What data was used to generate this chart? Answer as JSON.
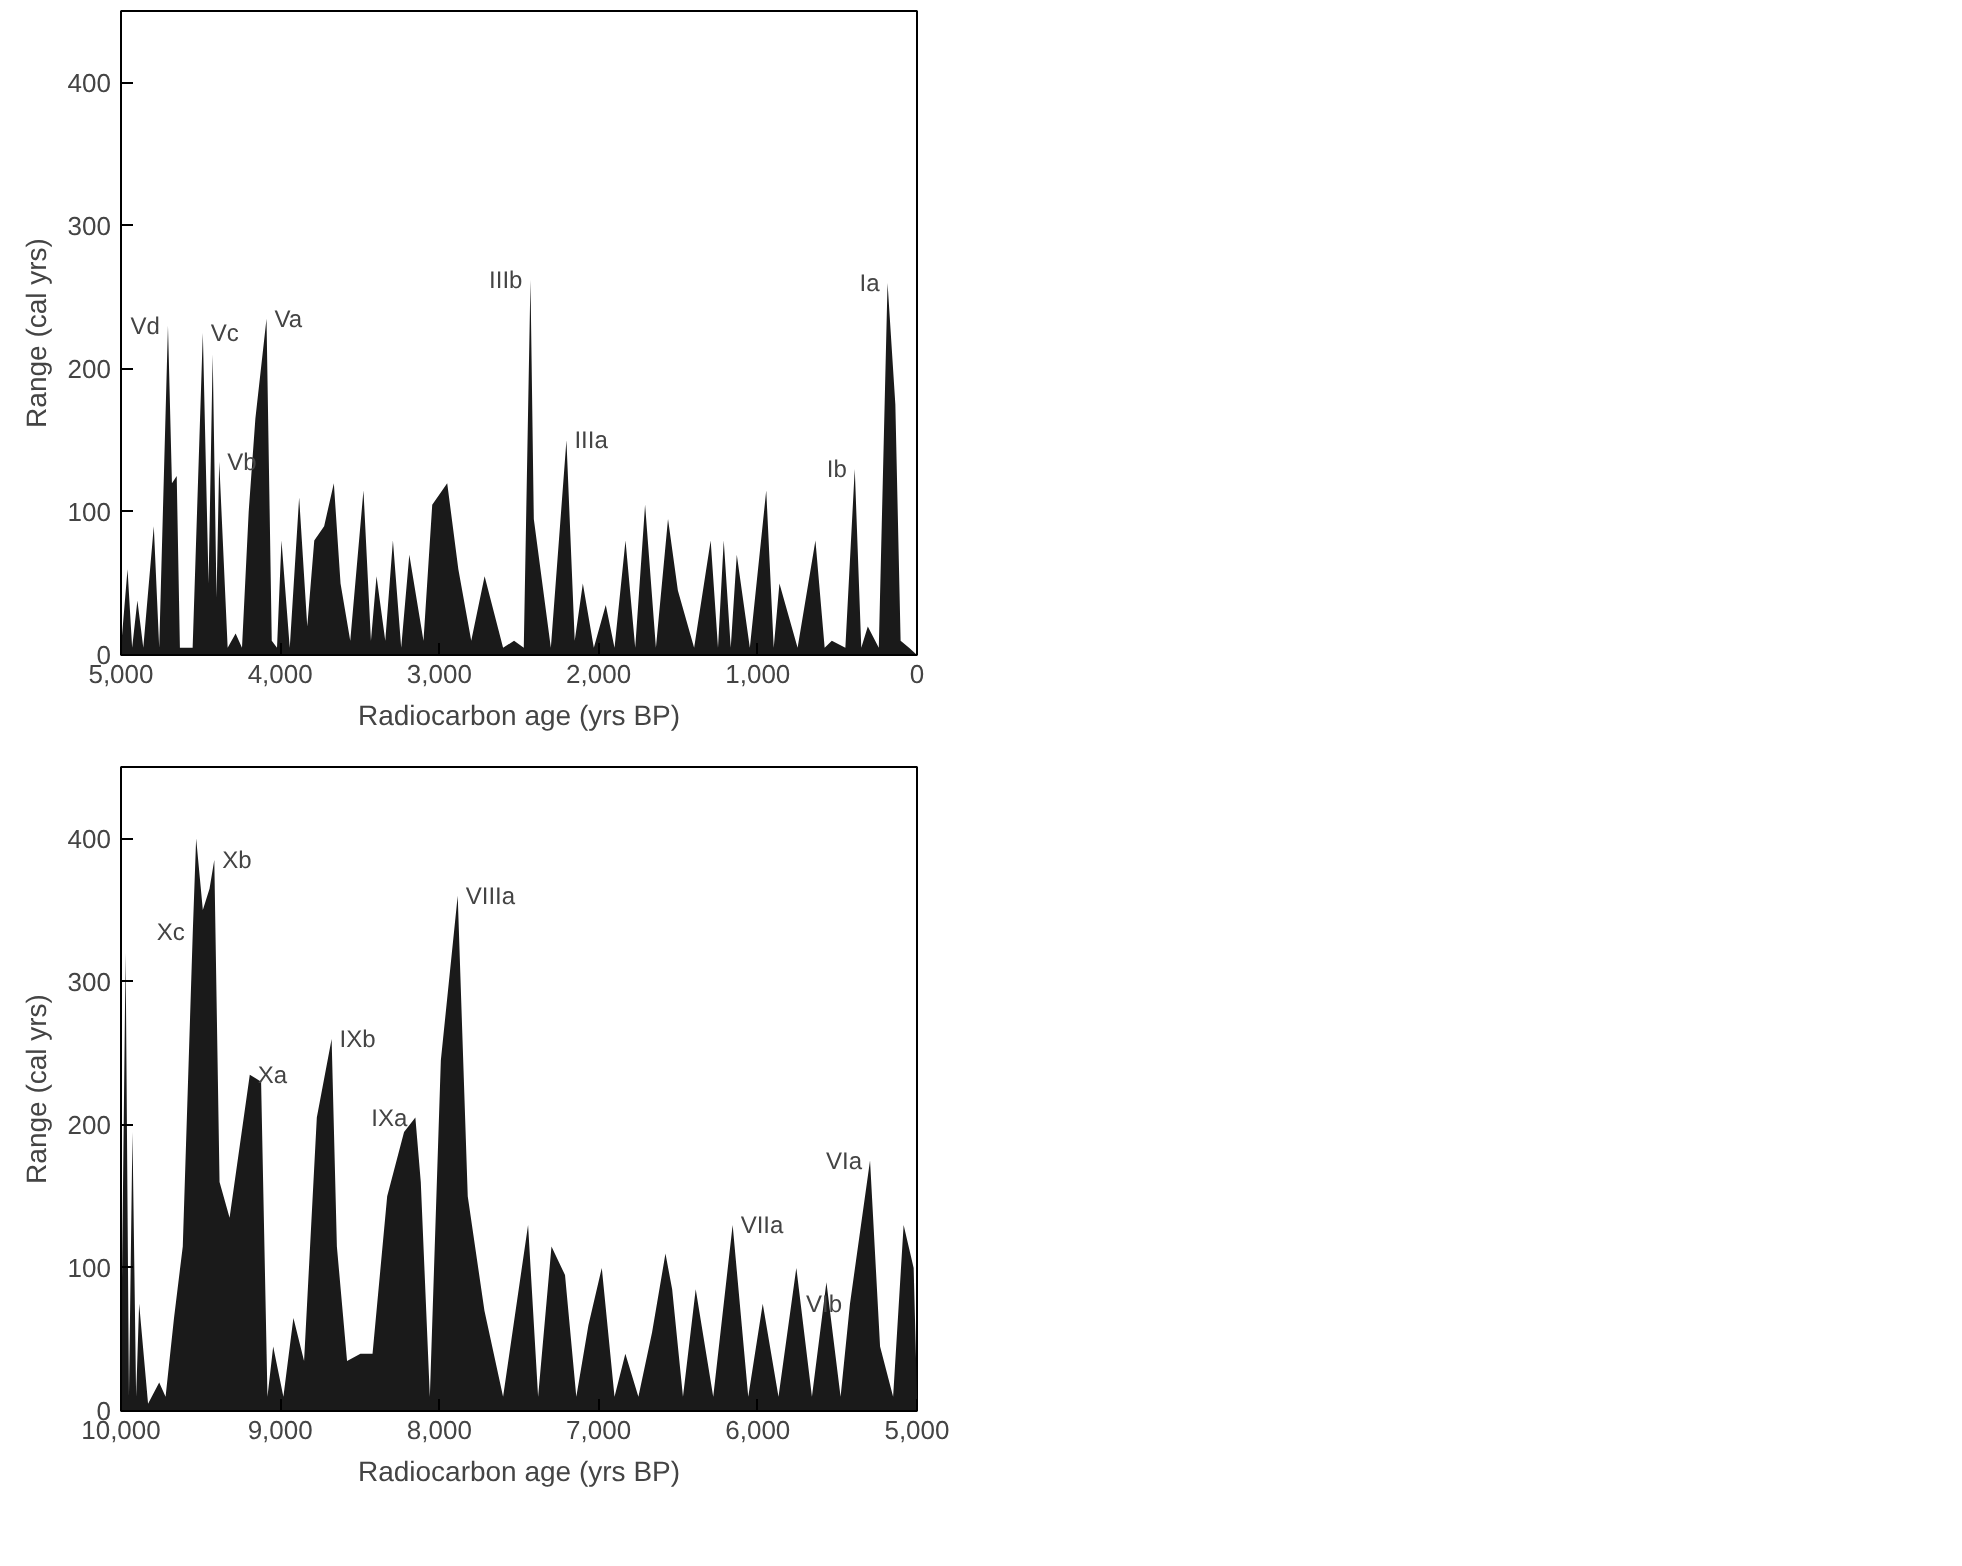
{
  "chart_data": [
    {
      "type": "area",
      "xlabel": "Radiocarbon age (yrs BP)",
      "ylabel": "Range (cal yrs)",
      "grid": false,
      "xlim": [
        5000,
        0
      ],
      "xticks": [
        {
          "value": 5000,
          "label": "5,000"
        },
        {
          "value": 4000,
          "label": "4,000"
        },
        {
          "value": 3000,
          "label": "3,000"
        },
        {
          "value": 2000,
          "label": "2,000"
        },
        {
          "value": 1000,
          "label": "1,000"
        },
        0
      ],
      "ylim": [
        0,
        450
      ],
      "yticks": [
        0,
        100,
        200,
        300,
        400
      ],
      "series": [
        {
          "color": "#1a1a1a",
          "x": [
            5000,
            4959,
            4930,
            4897,
            4860,
            4794,
            4760,
            4705,
            4680,
            4650,
            4630,
            4550,
            4486,
            4450,
            4424,
            4400,
            4383,
            4330,
            4280,
            4240,
            4198,
            4156,
            4086,
            4053,
            4020,
            3992,
            3940,
            3881,
            3830,
            3786,
            3724,
            3663,
            3621,
            3560,
            3477,
            3430,
            3395,
            3340,
            3292,
            3240,
            3189,
            3100,
            3045,
            2951,
            2881,
            2800,
            2716,
            2600,
            2531,
            2470,
            2428,
            2407,
            2300,
            2202,
            2150,
            2099,
            2030,
            1955,
            1900,
            1831,
            1770,
            1708,
            1640,
            1564,
            1502,
            1400,
            1296,
            1250,
            1214,
            1170,
            1132,
            1050,
            947,
            900,
            864,
            750,
            638,
            580,
            535,
            450,
            391,
            350,
            309,
            240,
            185,
            136,
            103,
            50,
            0
          ],
          "values": [
            5,
            60,
            5,
            38,
            5,
            90,
            5,
            230,
            120,
            125,
            5,
            5,
            225,
            50,
            210,
            40,
            135,
            5,
            15,
            5,
            100,
            165,
            235,
            10,
            5,
            80,
            5,
            110,
            20,
            80,
            90,
            120,
            50,
            10,
            115,
            10,
            55,
            10,
            80,
            5,
            70,
            10,
            105,
            120,
            60,
            10,
            55,
            5,
            10,
            5,
            262,
            95,
            5,
            150,
            10,
            50,
            5,
            35,
            5,
            80,
            5,
            105,
            5,
            95,
            45,
            5,
            80,
            5,
            80,
            5,
            70,
            5,
            115,
            5,
            50,
            5,
            80,
            5,
            10,
            5,
            130,
            5,
            20,
            5,
            260,
            175,
            10,
            5,
            0
          ]
        }
      ],
      "annotations": [
        {
          "text": "Vd",
          "x": 4705,
          "y": 230
        },
        {
          "text": "Vc",
          "x": 4486,
          "y": 225
        },
        {
          "text": "Vb",
          "x": 4383,
          "y": 135
        },
        {
          "text": "Va",
          "x": 4086,
          "y": 235
        },
        {
          "text": "IIIb",
          "x": 2428,
          "y": 262
        },
        {
          "text": "IIIa",
          "x": 2202,
          "y": 150
        },
        {
          "text": "Ib",
          "x": 391,
          "y": 130
        },
        {
          "text": "Ia",
          "x": 185,
          "y": 260
        }
      ]
    },
    {
      "type": "area",
      "xlabel": "Radiocarbon age (yrs BP)",
      "ylabel": "Range (cal yrs)",
      "grid": false,
      "xlim": [
        10000,
        5000
      ],
      "xticks": [
        {
          "value": 10000,
          "label": "10,000"
        },
        {
          "value": 9000,
          "label": "9,000"
        },
        {
          "value": 8000,
          "label": "8,000"
        },
        {
          "value": 7000,
          "label": "7,000"
        },
        {
          "value": 6000,
          "label": "6,000"
        },
        {
          "value": 5000,
          "label": "5,000"
        }
      ],
      "ylim": [
        0,
        450
      ],
      "yticks": [
        0,
        100,
        200,
        300,
        400
      ],
      "series": [
        {
          "color": "#1a1a1a",
          "x": [
            10000,
            9971,
            9950,
            9928,
            9905,
            9886,
            9830,
            9760,
            9720,
            9667,
            9612,
            9549,
            9528,
            9486,
            9444,
            9414,
            9381,
            9318,
            9191,
            9120,
            9080,
            9044,
            8980,
            8917,
            8850,
            8770,
            8677,
            8644,
            8580,
            8496,
            8420,
            8328,
            8222,
            8151,
            8117,
            8060,
            7991,
            7885,
            7822,
            7717,
            7600,
            7443,
            7380,
            7296,
            7211,
            7140,
            7064,
            6980,
            6900,
            6832,
            6750,
            6664,
            6580,
            6538,
            6470,
            6390,
            6280,
            6158,
            6060,
            5969,
            5870,
            5758,
            5660,
            5569,
            5480,
            5421,
            5295,
            5232,
            5150,
            5084,
            5021,
            5000
          ],
          "values": [
            30,
            320,
            10,
            195,
            10,
            75,
            5,
            20,
            10,
            65,
            115,
            335,
            400,
            350,
            365,
            385,
            160,
            135,
            235,
            230,
            10,
            45,
            10,
            65,
            35,
            205,
            260,
            115,
            35,
            40,
            40,
            150,
            195,
            205,
            160,
            10,
            245,
            360,
            150,
            70,
            10,
            130,
            10,
            115,
            95,
            10,
            60,
            100,
            10,
            40,
            10,
            55,
            110,
            85,
            10,
            85,
            10,
            130,
            10,
            75,
            10,
            100,
            10,
            90,
            10,
            75,
            175,
            45,
            10,
            130,
            100,
            10
          ]
        }
      ],
      "annotations": [
        {
          "text": "Xc",
          "x": 9549,
          "y": 335
        },
        {
          "text": "Xb",
          "x": 9414,
          "y": 385
        },
        {
          "text": "Xa",
          "x": 9191,
          "y": 235
        },
        {
          "text": "IXb",
          "x": 8677,
          "y": 260
        },
        {
          "text": "IXa",
          "x": 8151,
          "y": 205
        },
        {
          "text": "VIIIa",
          "x": 7885,
          "y": 360
        },
        {
          "text": "VIIa",
          "x": 6158,
          "y": 130
        },
        {
          "text": "VIb",
          "x": 5421,
          "y": 75
        },
        {
          "text": "VIa",
          "x": 5295,
          "y": 175
        }
      ]
    }
  ]
}
